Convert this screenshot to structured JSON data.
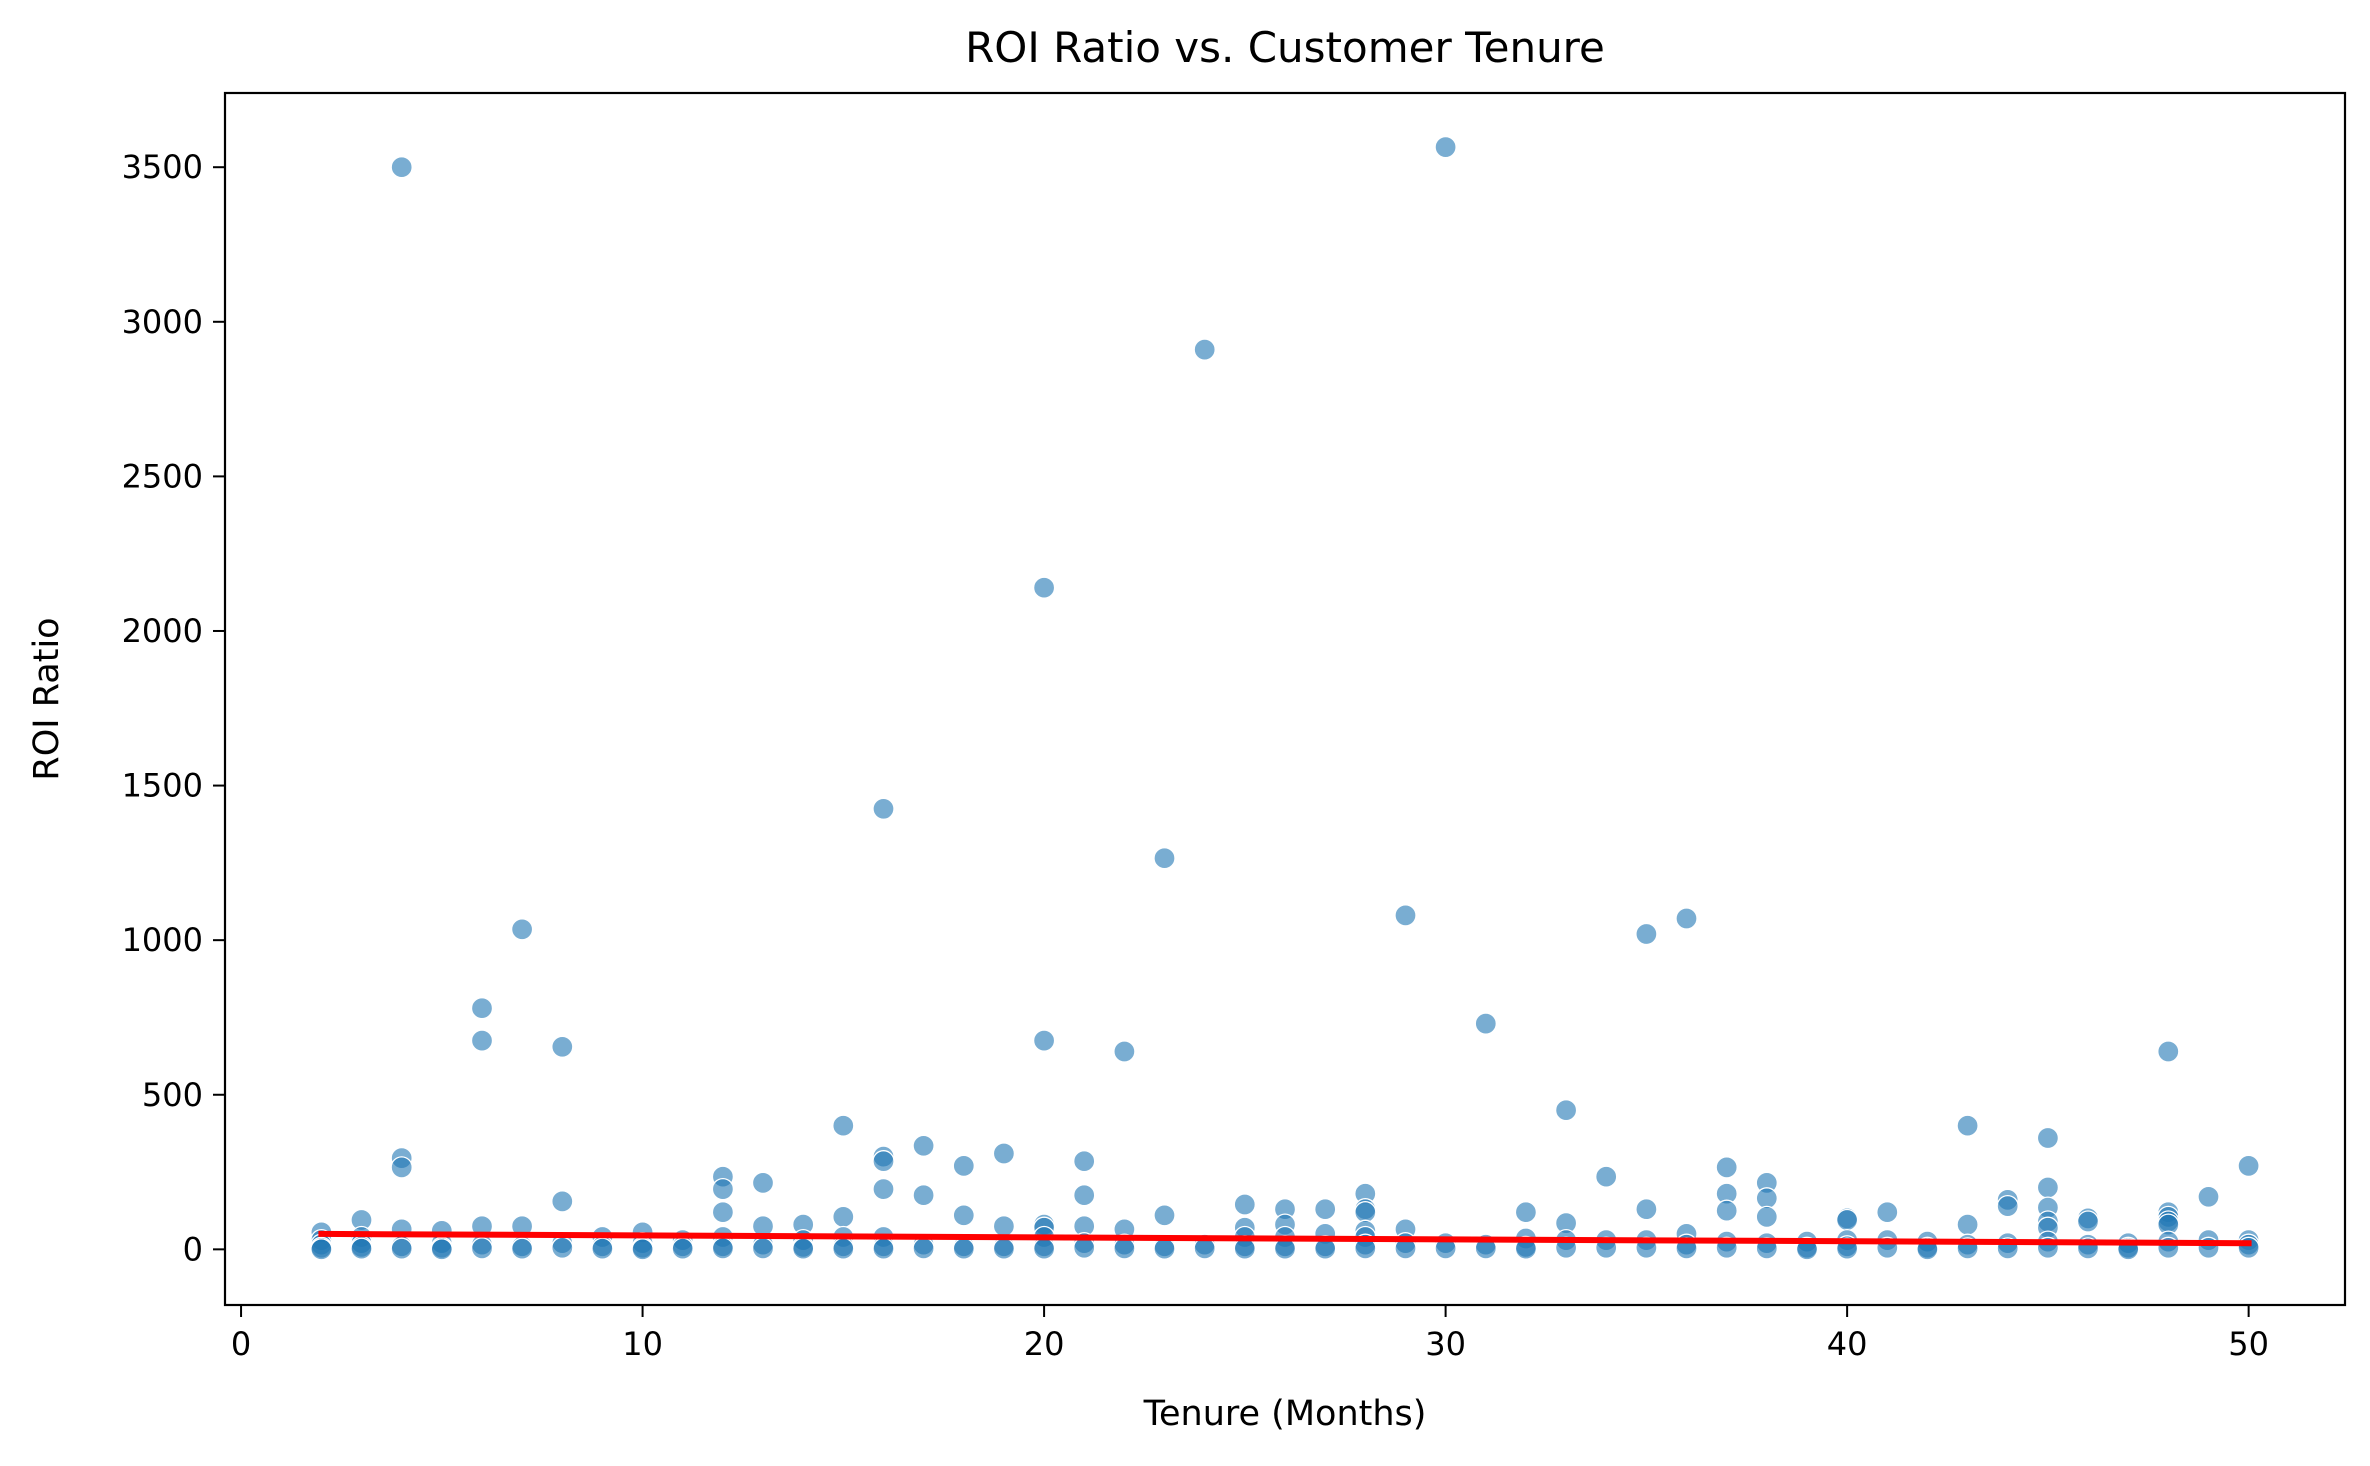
{
  "chart_data": {
    "type": "scatter",
    "title": "ROI Ratio vs. Customer Tenure",
    "xlabel": "Tenure (Months)",
    "ylabel": "ROI Ratio",
    "xlim": [
      -0.4,
      52.4
    ],
    "ylim": [
      -180,
      3740
    ],
    "xticks": [
      0,
      10,
      20,
      30,
      40,
      50
    ],
    "yticks": [
      0,
      500,
      1000,
      1500,
      2000,
      2500,
      3000,
      3500
    ],
    "grid": false,
    "legend": "none",
    "point_color": "#1f77b4",
    "point_opacity": 0.6,
    "trend_color": "#ff0000",
    "trend_line": {
      "x": [
        2,
        50
      ],
      "y": [
        50,
        20
      ]
    },
    "points": [
      [
        2,
        55
      ],
      [
        2,
        30
      ],
      [
        2,
        15
      ],
      [
        2,
        5
      ],
      [
        2,
        0
      ],
      [
        3,
        95
      ],
      [
        3,
        40
      ],
      [
        3,
        20
      ],
      [
        3,
        8
      ],
      [
        3,
        2
      ],
      [
        4,
        3500
      ],
      [
        4,
        295
      ],
      [
        4,
        265
      ],
      [
        4,
        65
      ],
      [
        4,
        10
      ],
      [
        4,
        2
      ],
      [
        5,
        60
      ],
      [
        5,
        20
      ],
      [
        5,
        5
      ],
      [
        5,
        0
      ],
      [
        6,
        780
      ],
      [
        6,
        675
      ],
      [
        6,
        75
      ],
      [
        6,
        15
      ],
      [
        6,
        3
      ],
      [
        7,
        1035
      ],
      [
        7,
        75
      ],
      [
        7,
        10
      ],
      [
        7,
        2
      ],
      [
        8,
        655
      ],
      [
        8,
        155
      ],
      [
        8,
        20
      ],
      [
        8,
        5
      ],
      [
        9,
        40
      ],
      [
        9,
        10
      ],
      [
        9,
        2
      ],
      [
        10,
        55
      ],
      [
        10,
        20
      ],
      [
        10,
        5
      ],
      [
        10,
        0
      ],
      [
        11,
        30
      ],
      [
        11,
        10
      ],
      [
        11,
        2
      ],
      [
        12,
        235
      ],
      [
        12,
        195
      ],
      [
        12,
        120
      ],
      [
        12,
        40
      ],
      [
        12,
        10
      ],
      [
        12,
        3
      ],
      [
        13,
        215
      ],
      [
        13,
        75
      ],
      [
        13,
        15
      ],
      [
        13,
        3
      ],
      [
        14,
        80
      ],
      [
        14,
        30
      ],
      [
        14,
        8
      ],
      [
        14,
        2
      ],
      [
        15,
        400
      ],
      [
        15,
        105
      ],
      [
        15,
        40
      ],
      [
        15,
        10
      ],
      [
        15,
        2
      ],
      [
        16,
        1425
      ],
      [
        16,
        300
      ],
      [
        16,
        285
      ],
      [
        16,
        195
      ],
      [
        16,
        40
      ],
      [
        16,
        10
      ],
      [
        16,
        2
      ],
      [
        17,
        335
      ],
      [
        17,
        175
      ],
      [
        17,
        15
      ],
      [
        17,
        3
      ],
      [
        18,
        270
      ],
      [
        18,
        110
      ],
      [
        18,
        10
      ],
      [
        18,
        2
      ],
      [
        19,
        310
      ],
      [
        19,
        75
      ],
      [
        19,
        10
      ],
      [
        19,
        2
      ],
      [
        20,
        2140
      ],
      [
        20,
        675
      ],
      [
        20,
        80
      ],
      [
        20,
        70
      ],
      [
        20,
        40
      ],
      [
        20,
        10
      ],
      [
        20,
        2
      ],
      [
        21,
        285
      ],
      [
        21,
        175
      ],
      [
        21,
        75
      ],
      [
        21,
        20
      ],
      [
        21,
        5
      ],
      [
        22,
        640
      ],
      [
        22,
        65
      ],
      [
        22,
        15
      ],
      [
        22,
        3
      ],
      [
        23,
        1265
      ],
      [
        23,
        110
      ],
      [
        23,
        10
      ],
      [
        23,
        2
      ],
      [
        24,
        2910
      ],
      [
        24,
        15
      ],
      [
        24,
        3
      ],
      [
        25,
        145
      ],
      [
        25,
        70
      ],
      [
        25,
        40
      ],
      [
        25,
        10
      ],
      [
        25,
        2
      ],
      [
        26,
        130
      ],
      [
        26,
        80
      ],
      [
        26,
        40
      ],
      [
        26,
        10
      ],
      [
        26,
        2
      ],
      [
        27,
        130
      ],
      [
        27,
        50
      ],
      [
        27,
        10
      ],
      [
        27,
        2
      ],
      [
        28,
        180
      ],
      [
        28,
        130
      ],
      [
        28,
        120
      ],
      [
        28,
        60
      ],
      [
        28,
        40
      ],
      [
        28,
        15
      ],
      [
        28,
        3
      ],
      [
        29,
        1080
      ],
      [
        29,
        65
      ],
      [
        29,
        20
      ],
      [
        29,
        3
      ],
      [
        30,
        3565
      ],
      [
        30,
        20
      ],
      [
        30,
        3
      ],
      [
        31,
        730
      ],
      [
        31,
        15
      ],
      [
        31,
        3
      ],
      [
        32,
        120
      ],
      [
        32,
        35
      ],
      [
        32,
        8
      ],
      [
        32,
        2
      ],
      [
        33,
        450
      ],
      [
        33,
        85
      ],
      [
        33,
        30
      ],
      [
        33,
        5
      ],
      [
        34,
        235
      ],
      [
        34,
        30
      ],
      [
        34,
        5
      ],
      [
        35,
        1020
      ],
      [
        35,
        130
      ],
      [
        35,
        30
      ],
      [
        35,
        5
      ],
      [
        36,
        1070
      ],
      [
        36,
        50
      ],
      [
        36,
        15
      ],
      [
        36,
        3
      ],
      [
        37,
        265
      ],
      [
        37,
        180
      ],
      [
        37,
        125
      ],
      [
        37,
        25
      ],
      [
        37,
        5
      ],
      [
        38,
        215
      ],
      [
        38,
        165
      ],
      [
        38,
        105
      ],
      [
        38,
        20
      ],
      [
        38,
        3
      ],
      [
        39,
        25
      ],
      [
        39,
        5
      ],
      [
        39,
        0
      ],
      [
        40,
        100
      ],
      [
        40,
        95
      ],
      [
        40,
        30
      ],
      [
        40,
        10
      ],
      [
        40,
        2
      ],
      [
        41,
        120
      ],
      [
        41,
        30
      ],
      [
        41,
        5
      ],
      [
        42,
        25
      ],
      [
        42,
        5
      ],
      [
        42,
        0
      ],
      [
        43,
        400
      ],
      [
        43,
        80
      ],
      [
        43,
        15
      ],
      [
        43,
        3
      ],
      [
        44,
        160
      ],
      [
        44,
        140
      ],
      [
        44,
        20
      ],
      [
        44,
        3
      ],
      [
        45,
        360
      ],
      [
        45,
        200
      ],
      [
        45,
        135
      ],
      [
        45,
        90
      ],
      [
        45,
        70
      ],
      [
        45,
        25
      ],
      [
        45,
        5
      ],
      [
        46,
        100
      ],
      [
        46,
        90
      ],
      [
        46,
        15
      ],
      [
        46,
        3
      ],
      [
        47,
        20
      ],
      [
        47,
        5
      ],
      [
        47,
        0
      ],
      [
        48,
        640
      ],
      [
        48,
        120
      ],
      [
        48,
        105
      ],
      [
        48,
        90
      ],
      [
        48,
        80
      ],
      [
        48,
        25
      ],
      [
        48,
        5
      ],
      [
        49,
        170
      ],
      [
        49,
        30
      ],
      [
        49,
        5
      ],
      [
        50,
        270
      ],
      [
        50,
        30
      ],
      [
        50,
        15
      ],
      [
        50,
        5
      ]
    ]
  }
}
